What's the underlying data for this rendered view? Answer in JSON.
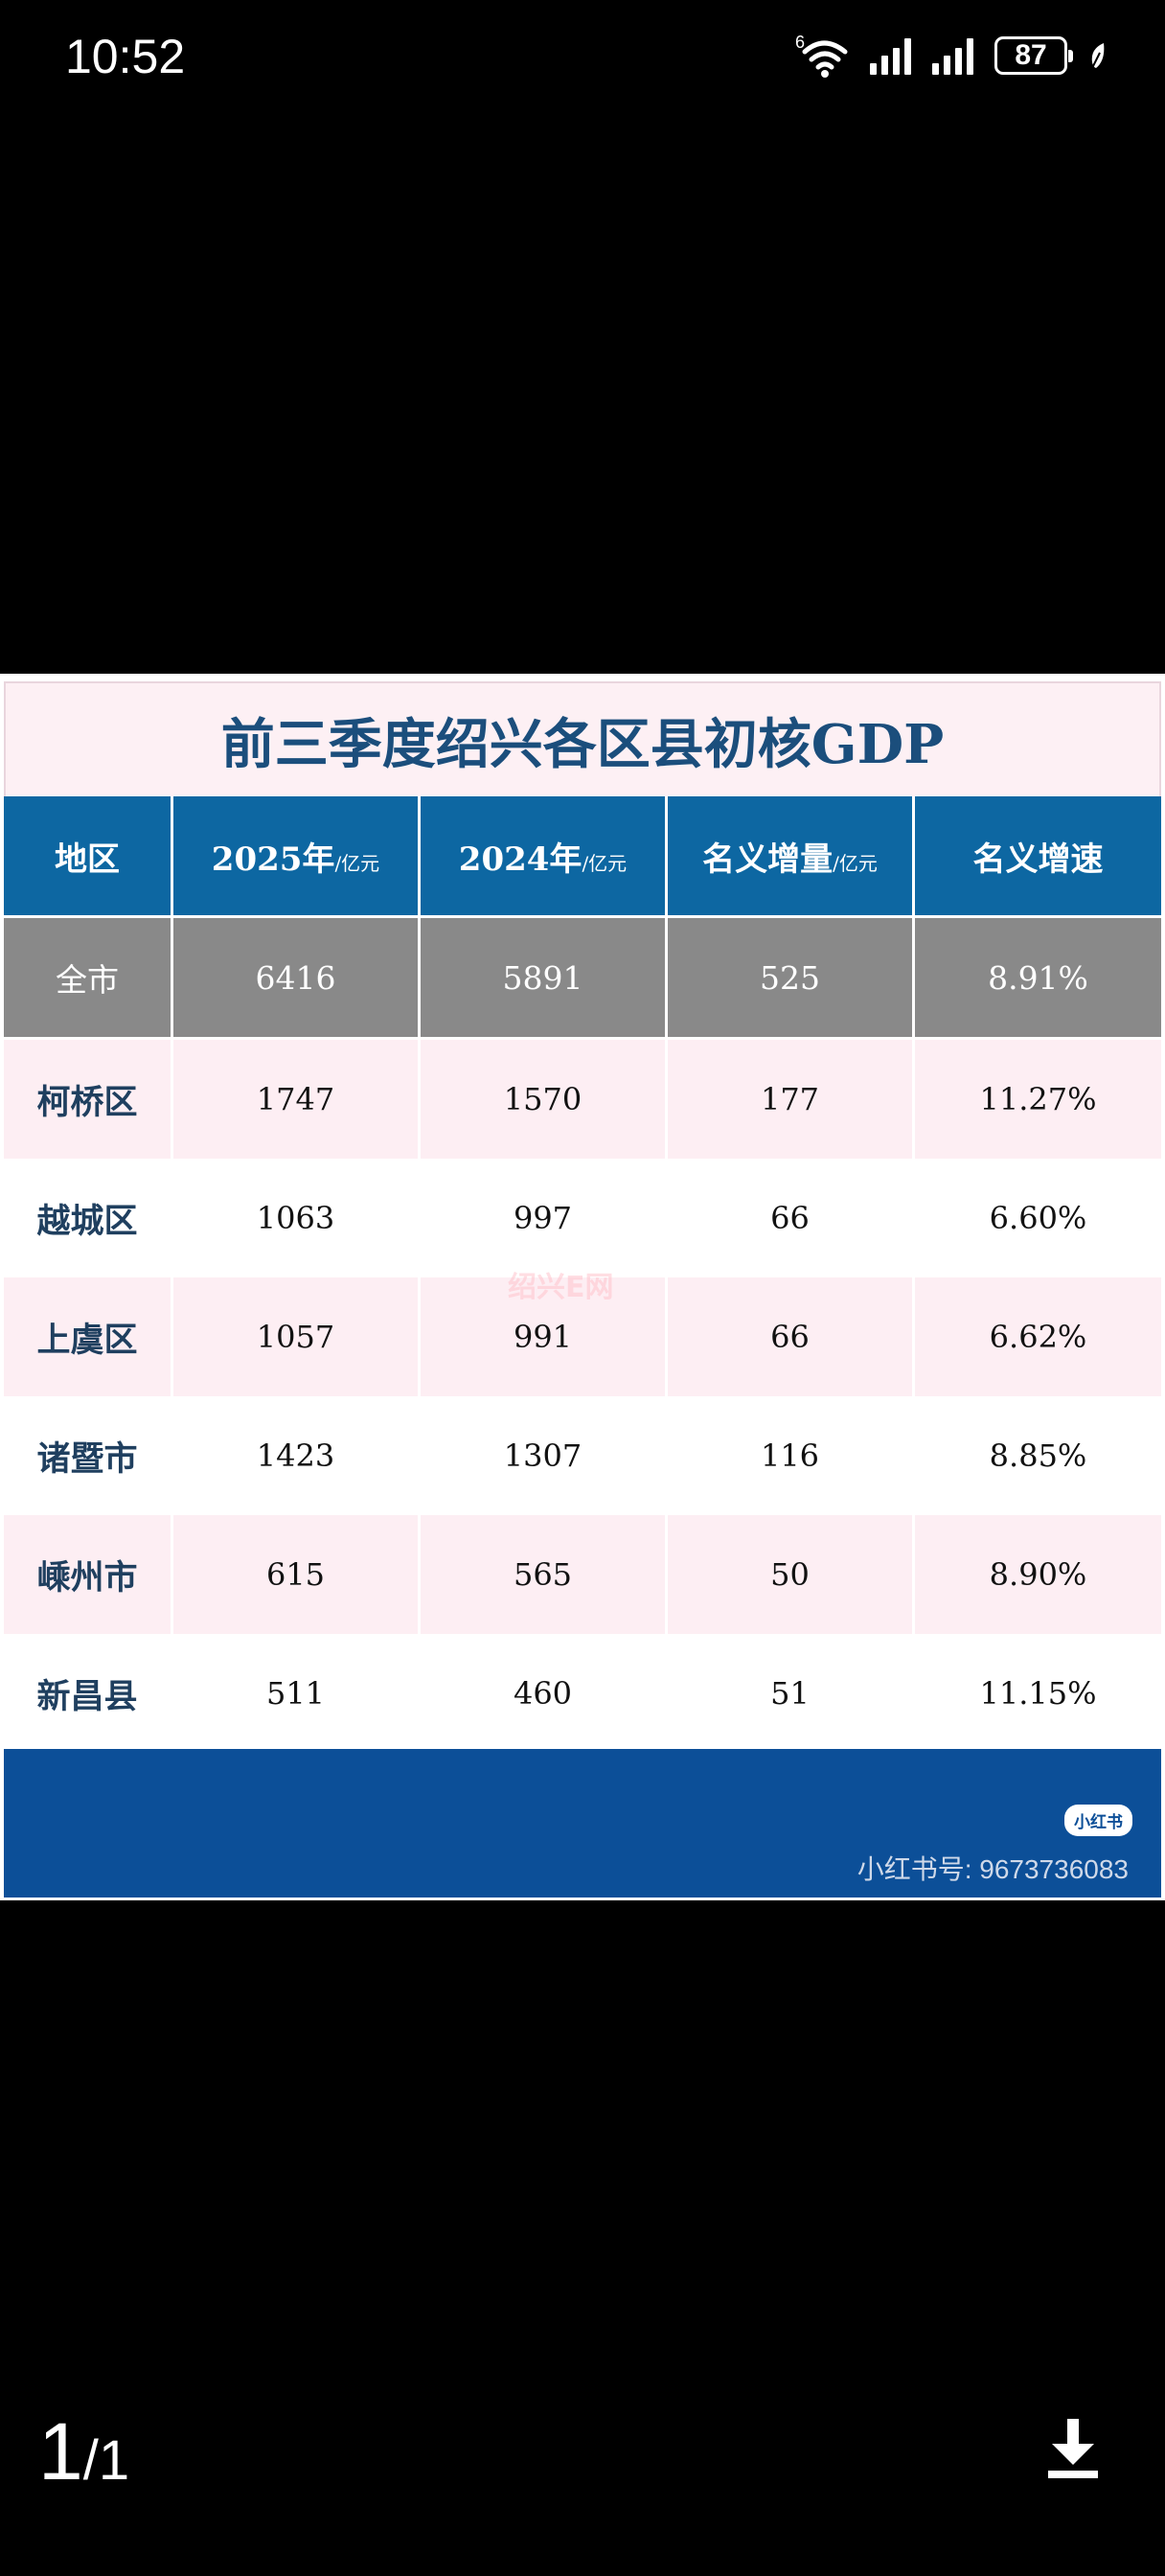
{
  "status_bar": {
    "time": "10:52",
    "wifi_label": "6",
    "battery": "87",
    "icons": [
      "wifi-icon",
      "signal-icon",
      "signal-icon",
      "battery-icon",
      "leaf-icon"
    ]
  },
  "image": {
    "title": "前三季度绍兴各区县初核GDP",
    "headers": [
      {
        "label": "地区",
        "unit": ""
      },
      {
        "label": "2025年",
        "unit": "/亿元"
      },
      {
        "label": "2024年",
        "unit": "/亿元"
      },
      {
        "label": "名义增量",
        "unit": "/亿元"
      },
      {
        "label": "名义增速",
        "unit": ""
      }
    ],
    "rows": [
      {
        "region": "全市",
        "y2025": "6416",
        "y2024": "5891",
        "increment": "525",
        "growth": "8.91%"
      },
      {
        "region": "柯桥区",
        "y2025": "1747",
        "y2024": "1570",
        "increment": "177",
        "growth": "11.27%"
      },
      {
        "region": "越城区",
        "y2025": "1063",
        "y2024": "997",
        "increment": "66",
        "growth": "6.60%"
      },
      {
        "region": "上虞区",
        "y2025": "1057",
        "y2024": "991",
        "increment": "66",
        "growth": "6.62%"
      },
      {
        "region": "诸暨市",
        "y2025": "1423",
        "y2024": "1307",
        "increment": "116",
        "growth": "8.85%"
      },
      {
        "region": "嵊州市",
        "y2025": "615",
        "y2024": "565",
        "increment": "50",
        "growth": "8.90%"
      },
      {
        "region": "新昌县",
        "y2025": "511",
        "y2024": "460",
        "increment": "51",
        "growth": "11.15%"
      }
    ],
    "watermark": "绍兴E网",
    "badge": "小红书",
    "xhs_id": "小红书号: 9673736083"
  },
  "viewer": {
    "page_current": "1",
    "page_total": "/1",
    "download_icon": "download-icon"
  }
}
